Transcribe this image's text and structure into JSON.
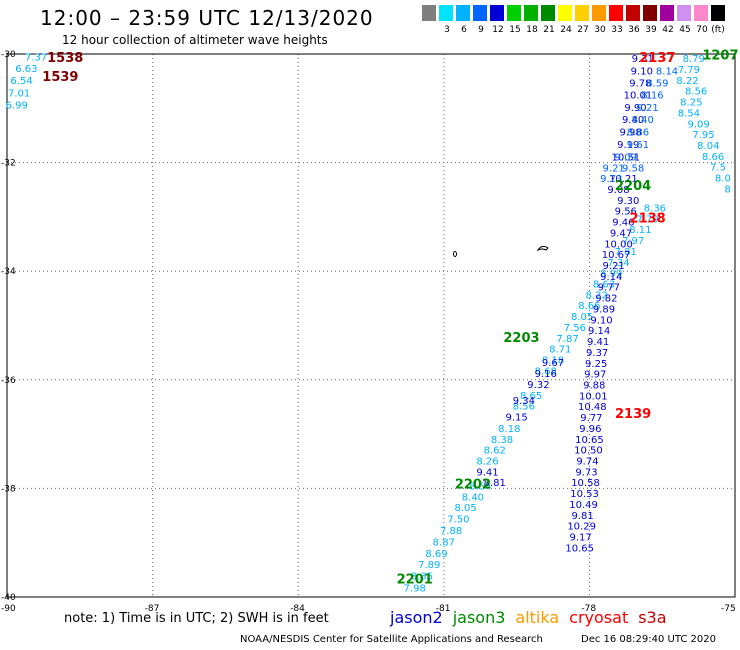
{
  "header": {
    "title": "12:00 – 23:59 UTC 12/13/2020",
    "subtitle": "12 hour collection of altimeter wave heights"
  },
  "legend": {
    "unit": "(ft)",
    "swatches": [
      {
        "color": "#7f7f7f",
        "label": ""
      },
      {
        "color": "#00e5ff",
        "label": "3"
      },
      {
        "color": "#00b2ff",
        "label": "6"
      },
      {
        "color": "#0066ff",
        "label": "9"
      },
      {
        "color": "#0000d6",
        "label": "12"
      },
      {
        "color": "#00d000",
        "label": "15"
      },
      {
        "color": "#00b000",
        "label": "18"
      },
      {
        "color": "#008a00",
        "label": "21"
      },
      {
        "color": "#ffff00",
        "label": "24"
      },
      {
        "color": "#ffd000",
        "label": "27"
      },
      {
        "color": "#ff9900",
        "label": "30"
      },
      {
        "color": "#ff0000",
        "label": "33"
      },
      {
        "color": "#c00000",
        "label": "36"
      },
      {
        "color": "#800000",
        "label": "39"
      },
      {
        "color": "#a000a0",
        "label": "42"
      },
      {
        "color": "#d090f0",
        "label": "45"
      },
      {
        "color": "#ff88cc",
        "label": "70"
      },
      {
        "color": "#000000",
        "label": ""
      }
    ]
  },
  "axes": {
    "lon_ticks": [
      -90,
      -87,
      -84,
      -81,
      -78,
      -75
    ],
    "lat_ticks": [
      -30,
      -32,
      -34,
      -36,
      -38,
      -40
    ],
    "lon_range": [
      -90,
      -75
    ],
    "lat_range": [
      -40,
      -30
    ]
  },
  "colors": {
    "jason2": "#0000d6",
    "jason3": "#008a00",
    "altika": "#ff9900",
    "cryosat": "#ff0000",
    "s3a": "#c00000",
    "light": "#00b2ff",
    "mid": "#0066ff"
  },
  "time_labels": [
    {
      "text": "1538",
      "lon": -88.8,
      "lat": -30.15,
      "color": "#800000"
    },
    {
      "text": "1539",
      "lon": -88.9,
      "lat": -30.5,
      "color": "#800000"
    },
    {
      "text": "2137",
      "lon": -76.6,
      "lat": -30.15,
      "color": "#ff0000"
    },
    {
      "text": "1207",
      "lon": -75.3,
      "lat": -30.1,
      "color": "#008a00"
    },
    {
      "text": "2204",
      "lon": -77.1,
      "lat": -32.5,
      "color": "#008a00"
    },
    {
      "text": "2138",
      "lon": -76.8,
      "lat": -33.1,
      "color": "#ff0000"
    },
    {
      "text": "2203",
      "lon": -79.4,
      "lat": -35.3,
      "color": "#008a00"
    },
    {
      "text": "2139",
      "lon": -77.1,
      "lat": -36.7,
      "color": "#ff0000"
    },
    {
      "text": "2202",
      "lon": -80.4,
      "lat": -38.0,
      "color": "#008a00"
    },
    {
      "text": "2201",
      "lon": -81.6,
      "lat": -39.75,
      "color": "#008a00"
    }
  ],
  "tracks": [
    {
      "name": "nw",
      "color": "#00b2ff",
      "points": [
        {
          "v": "7.37",
          "lon": -89.4,
          "lat": -30.12
        },
        {
          "v": "6.63",
          "lon": -89.6,
          "lat": -30.33
        },
        {
          "v": "6.54",
          "lon": -89.7,
          "lat": -30.55
        },
        {
          "v": "7.01",
          "lon": -89.75,
          "lat": -30.78
        },
        {
          "v": "6.99",
          "lon": -89.8,
          "lat": -31.0
        }
      ]
    },
    {
      "name": "cyan-ascending",
      "color": "#00b2ff",
      "points": [
        {
          "v": "7.98",
          "lon": -81.6,
          "lat": -39.9
        },
        {
          "v": "8.35",
          "lon": -81.45,
          "lat": -39.68
        },
        {
          "v": "7.89",
          "lon": -81.3,
          "lat": -39.47
        },
        {
          "v": "8.69",
          "lon": -81.15,
          "lat": -39.26
        },
        {
          "v": "8.87",
          "lon": -81.0,
          "lat": -39.05
        },
        {
          "v": "7.88",
          "lon": -80.85,
          "lat": -38.84
        },
        {
          "v": "7.50",
          "lon": -80.7,
          "lat": -38.63
        },
        {
          "v": "8.05",
          "lon": -80.55,
          "lat": -38.42
        },
        {
          "v": "8.40",
          "lon": -80.4,
          "lat": -38.22
        },
        {
          "v": "8.54",
          "lon": -80.25,
          "lat": -38.02
        },
        {
          "v": "8.26",
          "lon": -80.1,
          "lat": -37.56
        },
        {
          "v": "8.62",
          "lon": -79.95,
          "lat": -37.36
        },
        {
          "v": "8.38",
          "lon": -79.8,
          "lat": -37.16
        },
        {
          "v": "8.18",
          "lon": -79.65,
          "lat": -36.96
        },
        {
          "v": "8.56",
          "lon": -79.35,
          "lat": -36.55
        },
        {
          "v": "8.65",
          "lon": -79.2,
          "lat": -36.35
        },
        {
          "v": "8.68",
          "lon": -78.9,
          "lat": -35.9
        },
        {
          "v": "8.18",
          "lon": -78.75,
          "lat": -35.7
        },
        {
          "v": "8.71",
          "lon": -78.6,
          "lat": -35.5
        },
        {
          "v": "7.87",
          "lon": -78.45,
          "lat": -35.3
        },
        {
          "v": "7.56",
          "lon": -78.3,
          "lat": -35.1
        },
        {
          "v": "8.05",
          "lon": -78.15,
          "lat": -34.9
        },
        {
          "v": "8.66",
          "lon": -78.0,
          "lat": -34.7
        },
        {
          "v": "8.22",
          "lon": -77.85,
          "lat": -34.5
        },
        {
          "v": "8.63",
          "lon": -77.7,
          "lat": -34.3
        },
        {
          "v": "8.99",
          "lon": -77.55,
          "lat": -34.1
        },
        {
          "v": "7.34",
          "lon": -77.4,
          "lat": -33.9
        },
        {
          "v": "7.81",
          "lon": -77.25,
          "lat": -33.7
        },
        {
          "v": "7.97",
          "lon": -77.1,
          "lat": -33.5
        },
        {
          "v": "8.11",
          "lon": -76.95,
          "lat": -33.3
        },
        {
          "v": "7.79",
          "lon": -76.8,
          "lat": -33.1
        },
        {
          "v": "8.36",
          "lon": -76.65,
          "lat": -32.9
        }
      ]
    },
    {
      "name": "blue-ascending",
      "color": "#0000d6",
      "points": [
        {
          "v": "9.41",
          "lon": -80.1,
          "lat": -37.76
        },
        {
          "v": "8.81",
          "lon": -79.95,
          "lat": -37.96
        },
        {
          "v": "9.15",
          "lon": -79.5,
          "lat": -36.75
        },
        {
          "v": "9.34",
          "lon": -79.35,
          "lat": -36.45
        },
        {
          "v": "9.32",
          "lon": -79.05,
          "lat": -36.15
        },
        {
          "v": "9.16",
          "lon": -78.9,
          "lat": -35.95
        },
        {
          "v": "9.67",
          "lon": -78.75,
          "lat": -35.75
        }
      ]
    },
    {
      "name": "blue-descending",
      "color": "#0000d6",
      "points": [
        {
          "v": "9.31",
          "lon": -76.9,
          "lat": -30.15
        },
        {
          "v": "9.10",
          "lon": -76.92,
          "lat": -30.38
        },
        {
          "v": "9.78",
          "lon": -76.95,
          "lat": -30.6
        },
        {
          "v": "10.01",
          "lon": -77.0,
          "lat": -30.82
        },
        {
          "v": "9.90",
          "lon": -77.05,
          "lat": -31.05
        },
        {
          "v": "9.40",
          "lon": -77.1,
          "lat": -31.27
        },
        {
          "v": "9.98",
          "lon": -77.15,
          "lat": -31.5
        },
        {
          "v": "9.19",
          "lon": -77.2,
          "lat": -31.73
        },
        {
          "v": "10.51",
          "lon": -77.25,
          "lat": -31.96
        },
        {
          "v": "10.21",
          "lon": -77.3,
          "lat": -32.36
        },
        {
          "v": "9.08",
          "lon": -77.4,
          "lat": -32.56
        },
        {
          "v": "9.30",
          "lon": -77.2,
          "lat": -32.76
        },
        {
          "v": "9.56",
          "lon": -77.25,
          "lat": -32.96
        },
        {
          "v": "9.46",
          "lon": -77.3,
          "lat": -33.16
        },
        {
          "v": "9.47",
          "lon": -77.35,
          "lat": -33.36
        },
        {
          "v": "10.00",
          "lon": -77.4,
          "lat": -33.56
        },
        {
          "v": "10.67",
          "lon": -77.45,
          "lat": -33.76
        },
        {
          "v": "9.21",
          "lon": -77.5,
          "lat": -33.96
        },
        {
          "v": "9.14",
          "lon": -77.55,
          "lat": -34.16
        },
        {
          "v": "9.77",
          "lon": -77.6,
          "lat": -34.36
        },
        {
          "v": "9.82",
          "lon": -77.65,
          "lat": -34.56
        },
        {
          "v": "9.89",
          "lon": -77.7,
          "lat": -34.76
        },
        {
          "v": "9.10",
          "lon": -77.75,
          "lat": -34.96
        },
        {
          "v": "9.14",
          "lon": -77.8,
          "lat": -35.16
        },
        {
          "v": "9.41",
          "lon": -77.82,
          "lat": -35.36
        },
        {
          "v": "9.37",
          "lon": -77.84,
          "lat": -35.56
        },
        {
          "v": "9.25",
          "lon": -77.86,
          "lat": -35.76
        },
        {
          "v": "9.97",
          "lon": -77.88,
          "lat": -35.96
        },
        {
          "v": "9.88",
          "lon": -77.9,
          "lat": -36.16
        },
        {
          "v": "10.01",
          "lon": -77.92,
          "lat": -36.36
        },
        {
          "v": "10.48",
          "lon": -77.94,
          "lat": -36.56
        },
        {
          "v": "9.77",
          "lon": -77.96,
          "lat": -36.76
        },
        {
          "v": "9.96",
          "lon": -77.98,
          "lat": -36.96
        },
        {
          "v": "10.65",
          "lon": -78.0,
          "lat": -37.16
        },
        {
          "v": "10.50",
          "lon": -78.02,
          "lat": -37.36
        },
        {
          "v": "9.74",
          "lon": -78.04,
          "lat": -37.56
        },
        {
          "v": "9.73",
          "lon": -78.06,
          "lat": -37.76
        },
        {
          "v": "10.58",
          "lon": -78.08,
          "lat": -37.96
        },
        {
          "v": "10.53",
          "lon": -78.1,
          "lat": -38.16
        },
        {
          "v": "10.49",
          "lon": -78.12,
          "lat": -38.36
        },
        {
          "v": "9.81",
          "lon": -78.14,
          "lat": -38.56
        },
        {
          "v": "10.29",
          "lon": -78.16,
          "lat": -38.76
        },
        {
          "v": "9.17",
          "lon": -78.18,
          "lat": -38.96
        },
        {
          "v": "10.65",
          "lon": -78.2,
          "lat": -39.16
        }
      ]
    },
    {
      "name": "cyan-descending",
      "color": "#00b2ff",
      "points": [
        {
          "v": "8.79",
          "lon": -75.85,
          "lat": -30.15
        },
        {
          "v": "7.79",
          "lon": -75.95,
          "lat": -30.35
        },
        {
          "v": "8.22",
          "lon": -75.98,
          "lat": -30.55
        },
        {
          "v": "8.56",
          "lon": -75.8,
          "lat": -30.75
        },
        {
          "v": "8.25",
          "lon": -75.9,
          "lat": -30.95
        },
        {
          "v": "8.54",
          "lon": -75.95,
          "lat": -31.15
        },
        {
          "v": "9.09",
          "lon": -75.75,
          "lat": -31.35
        },
        {
          "v": "7.95",
          "lon": -75.65,
          "lat": -31.55
        },
        {
          "v": "8.04",
          "lon": -75.55,
          "lat": -31.75
        },
        {
          "v": "8.66",
          "lon": -75.45,
          "lat": -31.95
        },
        {
          "v": "7.5",
          "lon": -75.35,
          "lat": -32.15
        },
        {
          "v": "8.0",
          "lon": -75.25,
          "lat": -32.35
        },
        {
          "v": "8",
          "lon": -75.15,
          "lat": -32.55
        }
      ]
    },
    {
      "name": "mid-cluster",
      "color": "#0066ff",
      "points": [
        {
          "v": "8.14",
          "lon": -76.4,
          "lat": -30.38
        },
        {
          "v": "8.59",
          "lon": -76.6,
          "lat": -30.6
        },
        {
          "v": "8.16",
          "lon": -76.7,
          "lat": -30.82
        },
        {
          "v": "9.21",
          "lon": -76.8,
          "lat": -31.05
        },
        {
          "v": "8.40",
          "lon": -76.9,
          "lat": -31.27
        },
        {
          "v": "8.86",
          "lon": -77.0,
          "lat": -31.5
        },
        {
          "v": "9.61",
          "lon": -77.0,
          "lat": -31.73
        },
        {
          "v": "9.09",
          "lon": -77.25,
          "lat": -31.96
        },
        {
          "v": "9.21",
          "lon": -77.5,
          "lat": -32.16
        },
        {
          "v": "9.58",
          "lon": -77.1,
          "lat": -32.16
        },
        {
          "v": "9.73",
          "lon": -77.55,
          "lat": -32.36
        }
      ]
    }
  ],
  "sources": [
    {
      "name": "jason2",
      "color": "#0000d6"
    },
    {
      "name": "jason3",
      "color": "#008a00"
    },
    {
      "name": "altika",
      "color": "#ff9900"
    },
    {
      "name": "cryosat",
      "color": "#ff0000"
    },
    {
      "name": "s3a",
      "color": "#c00000"
    }
  ],
  "note": "note:  1) Time is in UTC;  2) SWH is in feet",
  "footer": {
    "left": "NOAA/NESDIS Center for Satellite Applications and Research",
    "right": "Dec 16 08:29:40 UTC 2020"
  }
}
